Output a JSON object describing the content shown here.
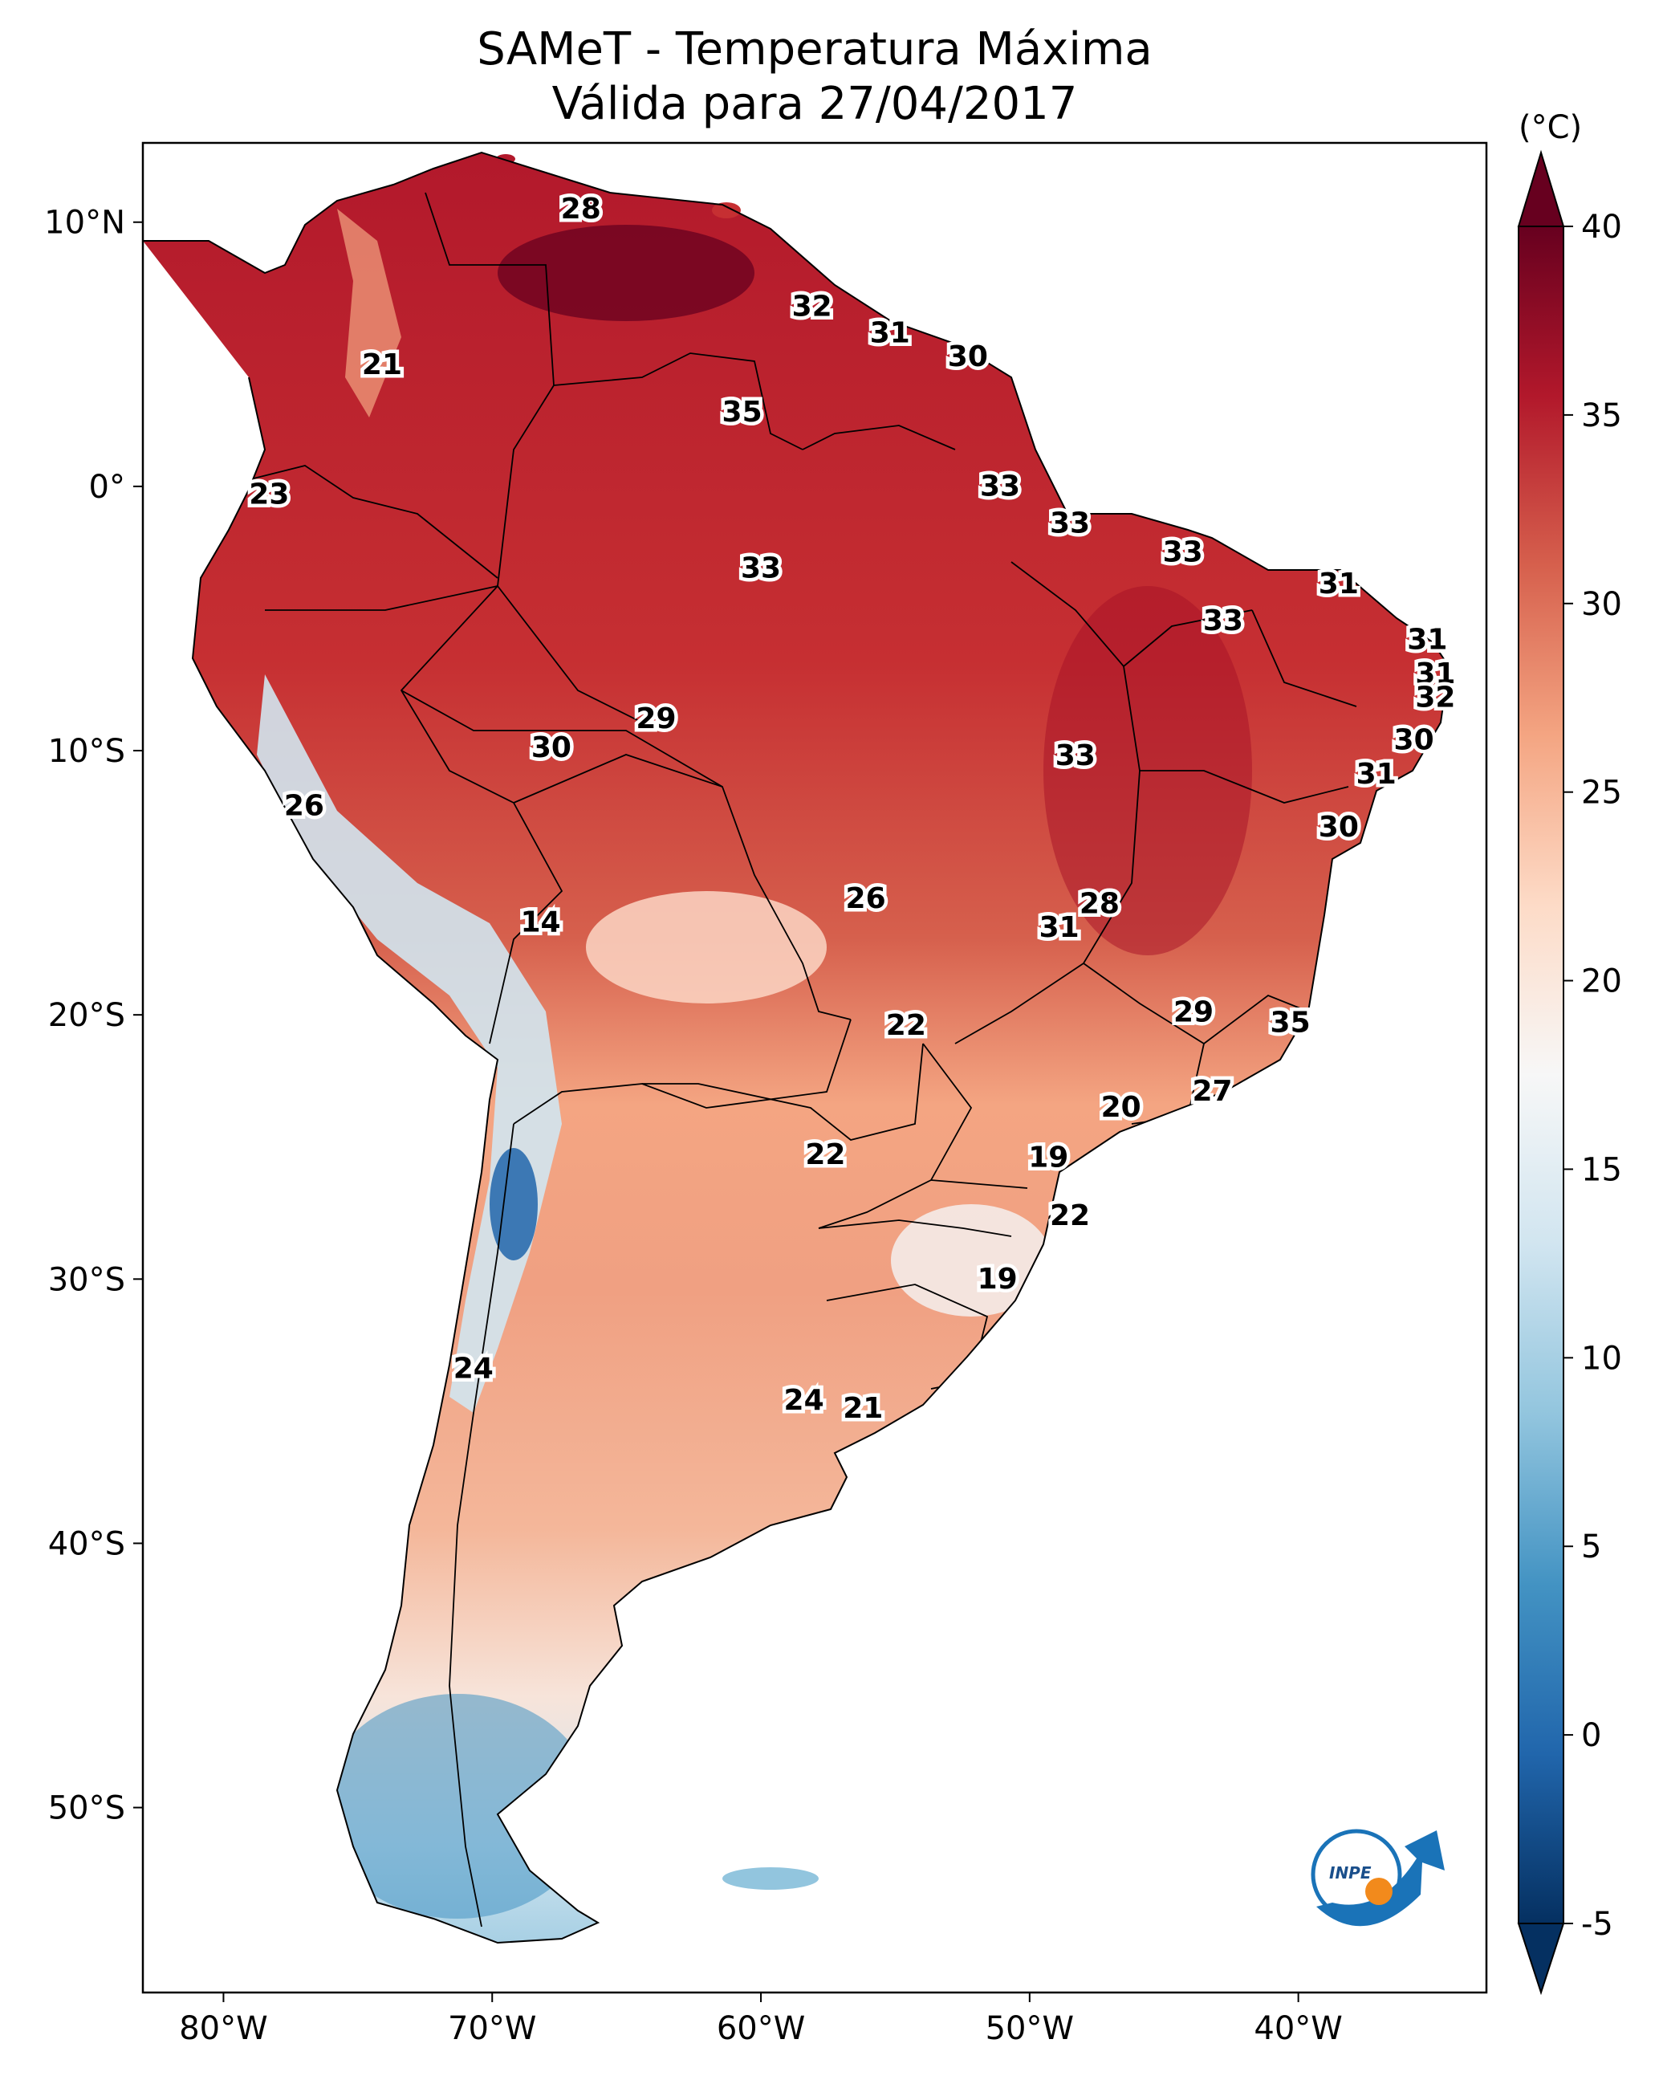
{
  "title": {
    "line1": "SAMeT - Temperatura Máxima",
    "line2": "Válida para 27/04/2017"
  },
  "map": {
    "lon_range": [
      -83,
      -33
    ],
    "lat_range": [
      -57,
      13
    ],
    "lon_ticks": [
      {
        "value": -80,
        "label": "80°W"
      },
      {
        "value": -70,
        "label": "70°W"
      },
      {
        "value": -60,
        "label": "60°W"
      },
      {
        "value": -50,
        "label": "50°W"
      },
      {
        "value": -40,
        "label": "40°W"
      }
    ],
    "lat_ticks": [
      {
        "value": 10,
        "label": "10°N"
      },
      {
        "value": 0,
        "label": "0°"
      },
      {
        "value": -10,
        "label": "10°S"
      },
      {
        "value": -20,
        "label": "20°S"
      },
      {
        "value": -30,
        "label": "30°S"
      },
      {
        "value": -40,
        "label": "40°S"
      },
      {
        "value": -50,
        "label": "50°S"
      }
    ],
    "city_values": [
      {
        "lon": -66.7,
        "lat": 10.5,
        "value": "28"
      },
      {
        "lon": -74.1,
        "lat": 4.6,
        "value": "21"
      },
      {
        "lon": -78.3,
        "lat": -0.3,
        "value": "23"
      },
      {
        "lon": -77.0,
        "lat": -12.1,
        "value": "26"
      },
      {
        "lon": -68.2,
        "lat": -16.5,
        "value": "14"
      },
      {
        "lon": -70.7,
        "lat": -33.4,
        "value": "24"
      },
      {
        "lon": -58.1,
        "lat": 6.8,
        "value": "32"
      },
      {
        "lon": -55.2,
        "lat": 5.8,
        "value": "31"
      },
      {
        "lon": -52.3,
        "lat": 4.9,
        "value": "30"
      },
      {
        "lon": -60.7,
        "lat": 2.8,
        "value": "35"
      },
      {
        "lon": -60.0,
        "lat": -3.1,
        "value": "33"
      },
      {
        "lon": -51.1,
        "lat": 0.0,
        "value": "33"
      },
      {
        "lon": -48.5,
        "lat": -1.4,
        "value": "33"
      },
      {
        "lon": -44.3,
        "lat": -2.5,
        "value": "33"
      },
      {
        "lon": -38.5,
        "lat": -3.7,
        "value": "31"
      },
      {
        "lon": -42.8,
        "lat": -5.1,
        "value": "33"
      },
      {
        "lon": -35.2,
        "lat": -5.8,
        "value": "31"
      },
      {
        "lon": -34.9,
        "lat": -7.1,
        "value": "31"
      },
      {
        "lon": -34.9,
        "lat": -8.0,
        "value": "32"
      },
      {
        "lon": -35.7,
        "lat": -9.6,
        "value": "30"
      },
      {
        "lon": -37.1,
        "lat": -10.9,
        "value": "31"
      },
      {
        "lon": -38.5,
        "lat": -12.9,
        "value": "30"
      },
      {
        "lon": -48.3,
        "lat": -10.2,
        "value": "33"
      },
      {
        "lon": -63.9,
        "lat": -8.8,
        "value": "29"
      },
      {
        "lon": -67.8,
        "lat": -9.9,
        "value": "30"
      },
      {
        "lon": -56.1,
        "lat": -15.6,
        "value": "26"
      },
      {
        "lon": -47.4,
        "lat": -15.8,
        "value": "28"
      },
      {
        "lon": -48.9,
        "lat": -16.7,
        "value": "31"
      },
      {
        "lon": -43.9,
        "lat": -19.9,
        "value": "29"
      },
      {
        "lon": -40.3,
        "lat": -20.3,
        "value": "35"
      },
      {
        "lon": -54.6,
        "lat": -20.4,
        "value": "22"
      },
      {
        "lon": -43.2,
        "lat": -22.9,
        "value": "27"
      },
      {
        "lon": -46.6,
        "lat": -23.5,
        "value": "20"
      },
      {
        "lon": -57.6,
        "lat": -25.3,
        "value": "22"
      },
      {
        "lon": -49.3,
        "lat": -25.4,
        "value": "19"
      },
      {
        "lon": -48.5,
        "lat": -27.6,
        "value": "22"
      },
      {
        "lon": -51.2,
        "lat": -30.0,
        "value": "19"
      },
      {
        "lon": -58.4,
        "lat": -34.6,
        "value": "24"
      },
      {
        "lon": -56.2,
        "lat": -34.9,
        "value": "21"
      }
    ]
  },
  "colorbar": {
    "unit": "(°C)",
    "range": [
      -5,
      40
    ],
    "ticks": [
      {
        "value": 40,
        "label": "40"
      },
      {
        "value": 35,
        "label": "35"
      },
      {
        "value": 30,
        "label": "30"
      },
      {
        "value": 25,
        "label": "25"
      },
      {
        "value": 20,
        "label": "20"
      },
      {
        "value": 15,
        "label": "15"
      },
      {
        "value": 10,
        "label": "10"
      },
      {
        "value": 5,
        "label": "5"
      },
      {
        "value": 0,
        "label": "0"
      },
      {
        "value": -5,
        "label": "-5"
      }
    ],
    "extend": "both",
    "colors": {
      "dark_red": "#67001f",
      "red": "#b2182b",
      "mid_red": "#d6604d",
      "salmon": "#f4a582",
      "light_salmon": "#fddbc7",
      "white": "#f7f7f7",
      "light_blue": "#d1e5f0",
      "sky_blue": "#92c5de",
      "blue": "#4393c3",
      "mid_blue": "#2166ac",
      "dark_blue": "#053061"
    }
  },
  "logo": {
    "text": "INPE"
  }
}
